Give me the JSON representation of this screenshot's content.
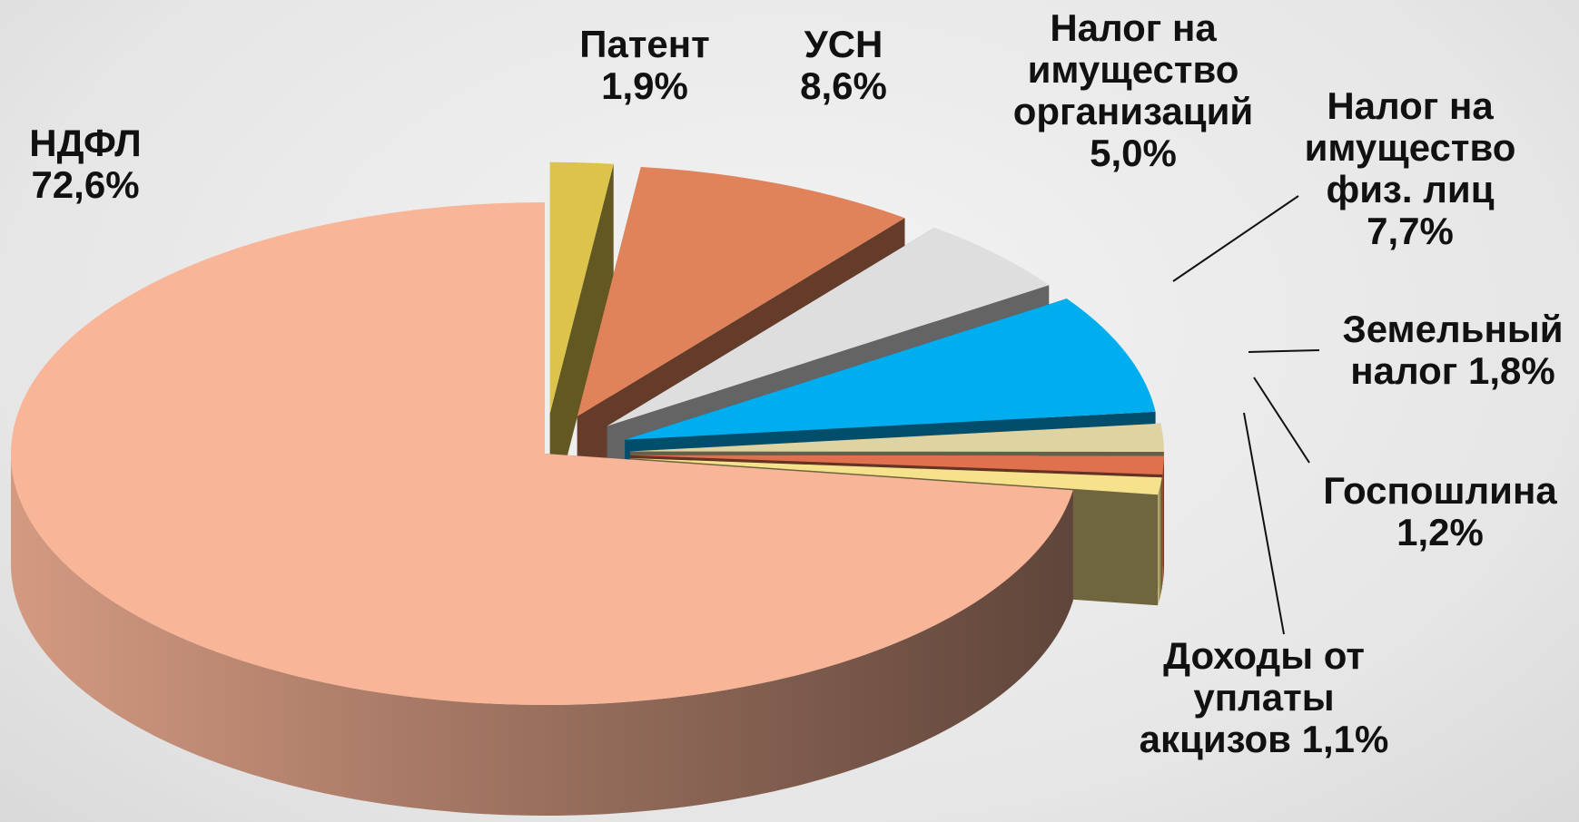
{
  "chart_data": {
    "type": "pie3d",
    "categories": [
      "Патент",
      "УСН",
      "Налог на имущество организаций",
      "Налог на имущество физ. лиц",
      "Земельный налог",
      "Госпошлина",
      "Доходы от уплаты акцизов",
      "НДФЛ"
    ],
    "values": [
      1.9,
      8.6,
      5.0,
      7.7,
      1.8,
      1.2,
      1.1,
      72.6
    ],
    "value_labels": [
      "1,9%",
      "8,6%",
      "5,0%",
      "7,7%",
      "1,8%",
      "1,2%",
      "1,1%",
      "72,6%"
    ],
    "colors": [
      "#dcc44c",
      "#e0835a",
      "#dedede",
      "#00aeef",
      "#dfd3a2",
      "#e0714f",
      "#f6e28c",
      "#f9b598"
    ]
  }
}
